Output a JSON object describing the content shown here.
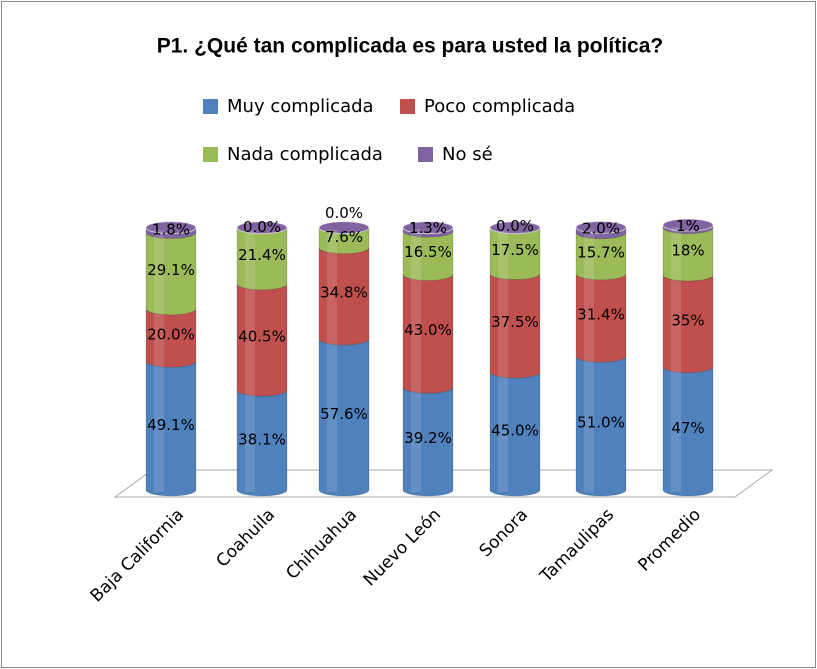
{
  "chart_data": {
    "type": "bar3d-stacked",
    "title": "P1. ¿Qué tan complicada es para usted la política?",
    "categories": [
      "Baja California",
      "Coahuila",
      "Chihuahua",
      "Nuevo León",
      "Sonora",
      "Tamaulipas",
      "Promedio"
    ],
    "series": [
      {
        "name": "Muy complicada",
        "color": "#4f81bd",
        "values": [
          49.1,
          38.1,
          57.6,
          39.2,
          45.0,
          51.0,
          47
        ],
        "value_labels": [
          "49.1%",
          "38.1%",
          "57.6%",
          "39.2%",
          "45.0%",
          "51.0%",
          "47%"
        ]
      },
      {
        "name": "Poco complicada",
        "color": "#c0504d",
        "values": [
          20.0,
          40.5,
          34.8,
          43.0,
          37.5,
          31.4,
          35
        ],
        "value_labels": [
          "20.0%",
          "40.5%",
          "34.8%",
          "43.0%",
          "37.5%",
          "31.4%",
          "35%"
        ]
      },
      {
        "name": "Nada complicada",
        "color": "#9bbb59",
        "values": [
          29.1,
          21.4,
          7.6,
          16.5,
          17.5,
          15.7,
          18
        ],
        "value_labels": [
          "29.1%",
          "21.4%",
          "7.6%",
          "16.5%",
          "17.5%",
          "15.7%",
          "18%"
        ]
      },
      {
        "name": "No sé",
        "color": "#8064a2",
        "values": [
          1.8,
          0.0,
          0.0,
          1.3,
          0.0,
          2.0,
          1
        ],
        "value_labels": [
          "1.8%",
          "0.0%",
          "0.0%",
          "1.3%",
          "0.0%",
          "2.0%",
          "1%"
        ]
      }
    ]
  }
}
